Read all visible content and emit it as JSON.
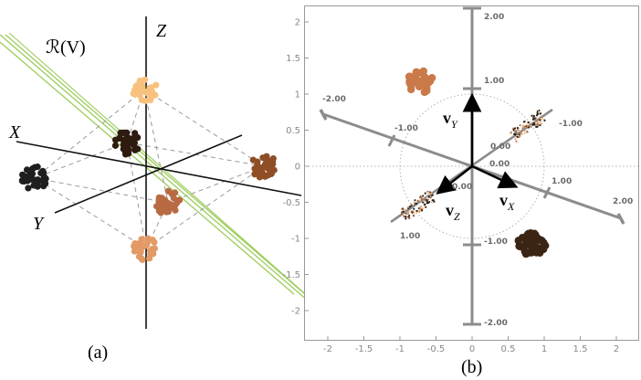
{
  "figure": {
    "panel_a": {
      "caption": "(a)",
      "axis_labels": {
        "x": "X",
        "y": "Y",
        "z": "Z"
      },
      "plane_label": "ℛ(V)",
      "clusters": [
        {
          "color": "#f8c27e"
        },
        {
          "color": "#2e1b10"
        },
        {
          "color": "#1e1e1e"
        },
        {
          "color": "#8f4e27"
        },
        {
          "color": "#b86a43"
        },
        {
          "color": "#e39a66"
        }
      ],
      "plane_color": "#9ccc5a"
    },
    "panel_b": {
      "caption": "(b)",
      "xlim": [
        -2.35,
        2.4
      ],
      "ylim": [
        -2.35,
        2.3
      ],
      "x_ticks": [
        "-2",
        "-1.5",
        "-1",
        "-0.5",
        "0",
        "0.5",
        "1",
        "1.5",
        "2"
      ],
      "y_ticks": [
        "2",
        "1.5",
        "1",
        "0.5",
        "0",
        "-0.5",
        "-1",
        "-1.5",
        "-2"
      ],
      "vertical_axis_labels": [
        "2.00",
        "1.00",
        "-1.00",
        "-2.00"
      ],
      "diag_axis_labels": [
        "-2.00",
        "-1.00",
        "1.00",
        "2.00"
      ],
      "second_diag_labels": [
        "-1.00",
        "1.00"
      ],
      "zero_labels": [
        "0.00",
        "0.00",
        "0.00"
      ],
      "vectors": {
        "vy": {
          "name": "v",
          "sub": "Y",
          "dx": 0.0,
          "dy": 0.95
        },
        "vx": {
          "name": "v",
          "sub": "X",
          "dx": 0.58,
          "dy": -0.27
        },
        "vz": {
          "name": "v",
          "sub": "Z",
          "dx": -0.45,
          "dy": -0.35
        }
      },
      "clusters": [
        {
          "color": "#c97a48",
          "x": -0.72,
          "y": 1.17
        },
        {
          "color": "#3b2413",
          "x": 0.83,
          "y": -1.08
        }
      ],
      "circle_radius": 1.0
    }
  }
}
